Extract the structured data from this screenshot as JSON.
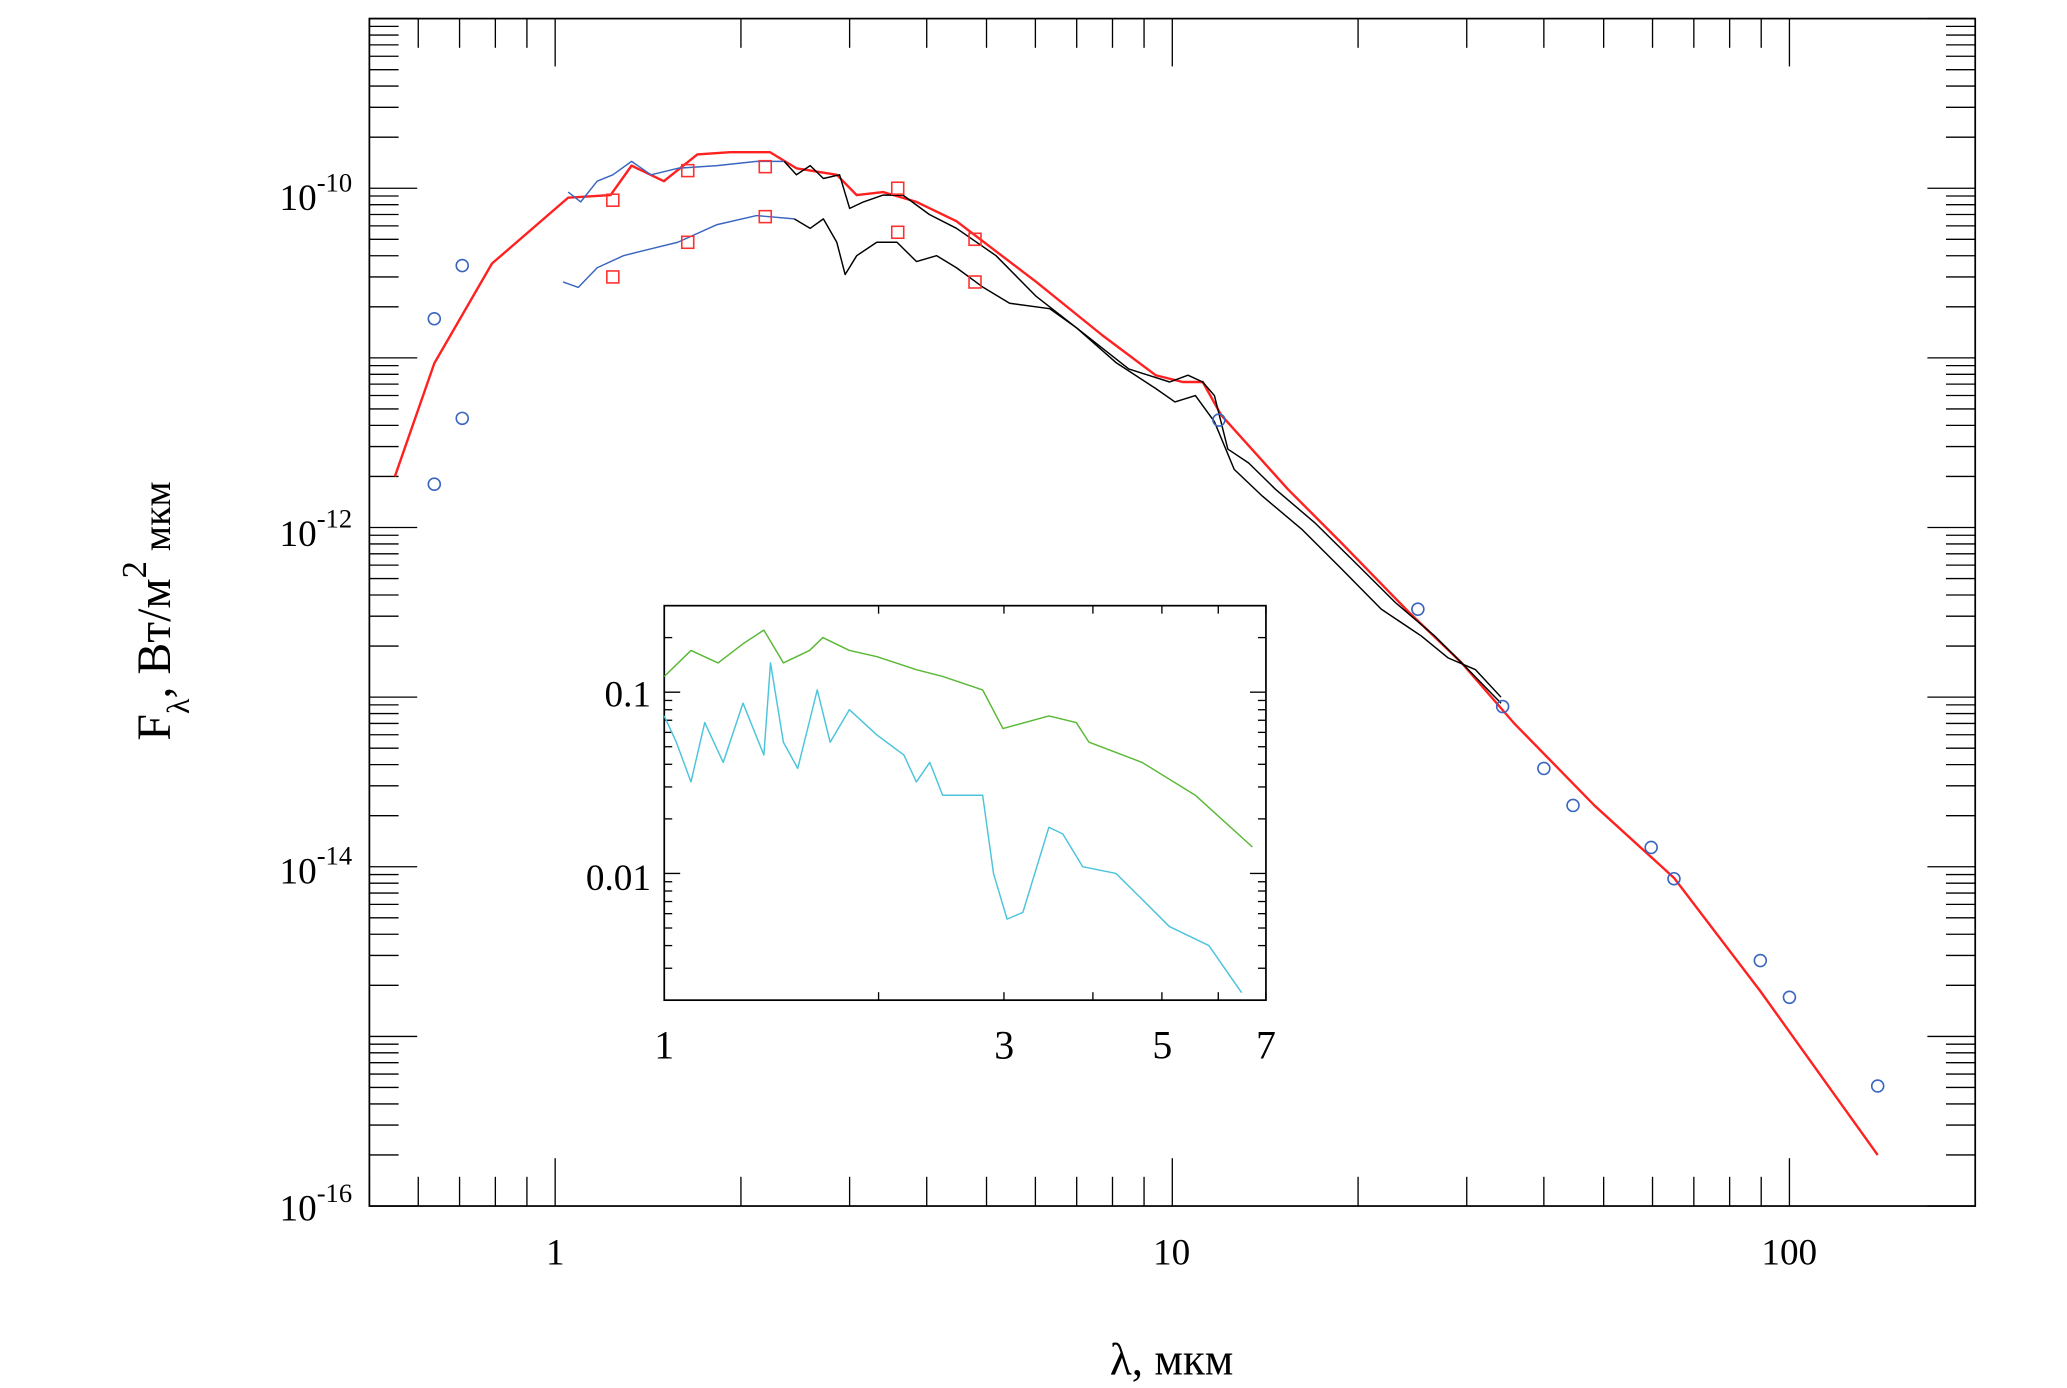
{
  "chart_data": [
    {
      "type": "line",
      "panel": "main",
      "xlabel": "λ, мкм",
      "ylabel_main": "F",
      "ylabel_sub": "λ",
      "ylabel_rest": ", Вт/м",
      "ylabel_sup": "2",
      "ylabel_tail": " мкм",
      "xscale": "log",
      "yscale": "log",
      "xlim": [
        0.5,
        200
      ],
      "ylim": [
        1e-16,
        1e-09
      ],
      "x_tick_labels": [
        "1",
        "10",
        "100"
      ],
      "x_ticks": [
        1,
        10,
        100
      ],
      "y_ticks": [
        1e-10,
        1e-12,
        1e-14,
        1e-16
      ],
      "y_tick_labels": [
        {
          "base": "10",
          "exp": "-10"
        },
        {
          "base": "10",
          "exp": "-12"
        },
        {
          "base": "10",
          "exp": "-14"
        },
        {
          "base": "10",
          "exp": "-16"
        }
      ],
      "grid": false,
      "colors": {
        "model": "#ff2020",
        "circles": "#3a66c0",
        "squares": "#ff3030",
        "spectrum_blue": "#3a66c0",
        "spectrum_black": "#000000"
      },
      "series": [
        {
          "style": "red-line",
          "x": [
            0.55,
            0.637,
            0.79,
            1.05,
            1.23,
            1.33,
            1.5,
            1.7,
            1.92,
            2.23,
            2.46,
            2.86,
            3.08,
            3.4,
            3.85,
            4.47,
            6.02,
            7.7,
            9.4,
            10.4,
            11.2,
            12.0,
            15.4,
            18.8,
            24.1,
            29.4,
            35.8,
            48.3,
            65,
            89.7,
            139
          ],
          "y": [
            2e-12,
            9.3e-12,
            3.6e-11,
            8.8e-11,
            9.1e-11,
            1.36e-10,
            1.1e-10,
            1.58e-10,
            1.63e-10,
            1.63e-10,
            1.31e-10,
            1.2e-10,
            9.1e-11,
            9.5e-11,
            8.3e-11,
            6.4e-11,
            2.8e-11,
            1.36e-11,
            7.9e-12,
            7.2e-12,
            7.2e-12,
            4.6e-12,
            1.68e-12,
            8.1e-13,
            3.2e-13,
            1.6e-13,
            7e-14,
            2.3e-14,
            8.6e-15,
            1.85e-15,
            2e-16
          ]
        },
        {
          "style": "blue-spectrum-upper",
          "x": [
            1.05,
            1.1,
            1.17,
            1.24,
            1.33,
            1.43,
            1.58,
            1.83,
            2.12,
            2.35
          ],
          "y": [
            9.5e-11,
            8.3e-11,
            1.1e-10,
            1.2e-10,
            1.44e-10,
            1.2e-10,
            1.31e-10,
            1.36e-10,
            1.44e-10,
            1.44e-10
          ]
        },
        {
          "style": "blue-spectrum-lower",
          "x": [
            1.03,
            1.09,
            1.17,
            1.29,
            1.43,
            1.58,
            1.83,
            2.12,
            2.44
          ],
          "y": [
            2.8e-11,
            2.6e-11,
            3.4e-11,
            4e-11,
            4.4e-11,
            4.8e-11,
            6.1e-11,
            6.9e-11,
            6.6e-11
          ]
        },
        {
          "style": "black-spectrum-upper",
          "x": [
            2.35,
            2.46,
            2.59,
            2.72,
            2.89,
            3.0,
            3.16,
            3.4,
            3.66,
            4.04,
            4.47,
            5.18,
            6.02,
            7.0,
            8.5,
            9.9,
            10.6,
            11.2,
            11.7,
            12.3,
            13.3,
            14.7,
            17.0,
            19.8,
            23.0,
            26.6,
            29.4,
            34.1
          ],
          "y": [
            1.44e-10,
            1.2e-10,
            1.36e-10,
            1.14e-10,
            1.2e-10,
            7.6e-11,
            8.3e-11,
            9.1e-11,
            9.1e-11,
            7e-11,
            5.8e-11,
            4e-11,
            2.3e-11,
            1.5e-11,
            8.6e-12,
            7.2e-12,
            7.9e-12,
            7.2e-12,
            6e-12,
            2.9e-12,
            2.4e-12,
            1.68e-12,
            1.07e-12,
            6.2e-13,
            3.6e-13,
            2.3e-13,
            1.6e-13,
            9.2e-14
          ]
        },
        {
          "style": "black-spectrum-lower",
          "x": [
            2.44,
            2.59,
            2.72,
            2.86,
            2.95,
            3.08,
            3.32,
            3.58,
            3.85,
            4.15,
            4.47,
            4.94,
            5.45,
            6.33,
            7.0,
            8.1,
            9.4,
            10.1,
            10.9,
            11.7,
            12.6,
            14.0,
            16.2,
            18.8,
            21.8,
            25.3,
            28.0,
            31.0,
            34.1
          ],
          "y": [
            6.6e-11,
            5.8e-11,
            6.6e-11,
            4.8e-11,
            3.1e-11,
            4e-11,
            4.8e-11,
            4.8e-11,
            3.7e-11,
            4e-11,
            3.4e-11,
            2.6e-11,
            2.1e-11,
            1.95e-11,
            1.5e-11,
            9.4e-12,
            6.6e-12,
            5.5e-12,
            6e-12,
            4.2e-12,
            2.2e-12,
            1.53e-12,
            9.8e-13,
            5.7e-13,
            3.3e-13,
            2.3e-13,
            1.7e-13,
            1.45e-13,
            1e-13
          ]
        },
        {
          "style": "open-circles",
          "x": [
            0.637,
            0.707,
            0.707,
            0.637,
            11.9,
            25,
            34.3,
            40,
            44.6,
            59.7,
            65,
            89.7,
            100,
            139
          ],
          "y": [
            1.7e-11,
            3.5e-11,
            4.4e-12,
            1.8e-12,
            4.3e-12,
            3.3e-13,
            8.8e-14,
            3.8e-14,
            2.3e-14,
            1.3e-14,
            8.5e-15,
            2.8e-15,
            1.7e-15,
            5.1e-16
          ]
        },
        {
          "style": "open-squares",
          "x": [
            1.24,
            1.24,
            1.64,
            1.64,
            2.19,
            2.19,
            3.59,
            3.59,
            4.79,
            4.79
          ],
          "y": [
            8.5e-11,
            3e-11,
            1.27e-10,
            4.8e-11,
            1.34e-10,
            6.8e-11,
            1e-10,
            5.5e-11,
            5e-11,
            2.8e-11
          ]
        }
      ]
    },
    {
      "type": "line",
      "panel": "inset",
      "xscale": "log",
      "yscale": "log",
      "xlim": [
        1,
        7
      ],
      "ylim": [
        0.002,
        0.3
      ],
      "x_ticks": [
        1,
        3,
        5,
        7
      ],
      "x_tick_labels": [
        "1",
        "3",
        "5",
        "7"
      ],
      "y_ticks": [
        0.1,
        0.01
      ],
      "y_tick_labels": [
        "0.1",
        "0.01"
      ],
      "grid": false,
      "colors": {
        "green": "#5ab836",
        "cyan": "#4cc4dc"
      },
      "series": [
        {
          "style": "green",
          "x": [
            1,
            1.09,
            1.19,
            1.29,
            1.38,
            1.47,
            1.6,
            1.67,
            1.82,
            1.99,
            2.26,
            2.46,
            2.8,
            2.99,
            3.47,
            3.79,
            3.95,
            4.69,
            5.57,
            6.7
          ],
          "y": [
            0.122,
            0.17,
            0.145,
            0.185,
            0.22,
            0.145,
            0.17,
            0.2,
            0.17,
            0.157,
            0.133,
            0.122,
            0.103,
            0.063,
            0.074,
            0.068,
            0.053,
            0.041,
            0.027,
            0.014
          ]
        },
        {
          "style": "cyan",
          "x": [
            1,
            1.04,
            1.09,
            1.14,
            1.21,
            1.29,
            1.38,
            1.41,
            1.47,
            1.54,
            1.64,
            1.71,
            1.82,
            1.99,
            2.17,
            2.26,
            2.36,
            2.46,
            2.57,
            2.8,
            2.9,
            3.03,
            3.19,
            3.47,
            3.63,
            3.87,
            4.31,
            4.69,
            5.12,
            5.82,
            6.47
          ],
          "y": [
            0.074,
            0.053,
            0.032,
            0.068,
            0.041,
            0.087,
            0.045,
            0.145,
            0.053,
            0.038,
            0.103,
            0.053,
            0.08,
            0.058,
            0.045,
            0.032,
            0.041,
            0.027,
            0.027,
            0.027,
            0.01,
            0.0056,
            0.0061,
            0.018,
            0.0165,
            0.0109,
            0.01,
            0.0072,
            0.0051,
            0.004,
            0.0022
          ]
        }
      ]
    }
  ]
}
